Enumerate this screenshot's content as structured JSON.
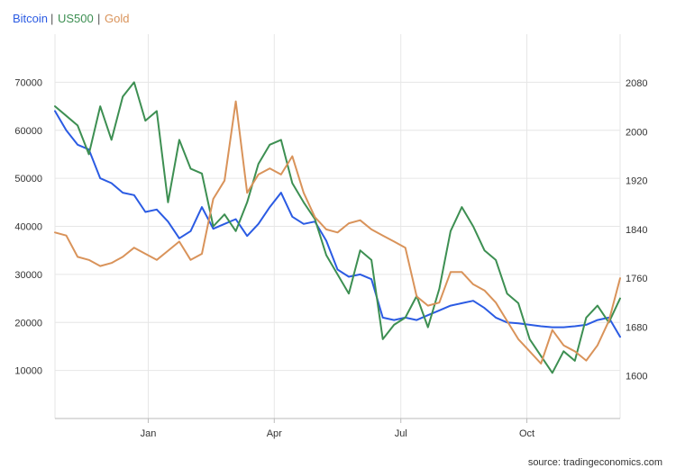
{
  "colors": {
    "bitcoin": "#2b5be3",
    "us500": "#3d8f52",
    "gold": "#d9935a",
    "grid": "#e6e6e6",
    "axis": "#bbbbbb",
    "separator": "#555555"
  },
  "legend": {
    "separator": "|",
    "items": [
      "Bitcoin",
      "US500",
      "Gold"
    ]
  },
  "source": "source: tradingeconomics.com",
  "chart_data": {
    "type": "line",
    "x_ticks": [
      "Jan",
      "Apr",
      "Jul",
      "Oct"
    ],
    "x_tick_positions": [
      0.165,
      0.388,
      0.612,
      0.835
    ],
    "left_axis": {
      "ylim": [
        0,
        80000
      ],
      "ticks": [
        10000,
        20000,
        30000,
        40000,
        50000,
        60000,
        70000
      ]
    },
    "right_axis": {
      "ylim": [
        1530,
        2160
      ],
      "ticks": [
        1600,
        1680,
        1760,
        1840,
        1920,
        2000,
        2080
      ]
    },
    "x": [
      0,
      0.02,
      0.04,
      0.06,
      0.08,
      0.1,
      0.12,
      0.14,
      0.16,
      0.18,
      0.2,
      0.22,
      0.24,
      0.26,
      0.28,
      0.3,
      0.32,
      0.34,
      0.36,
      0.38,
      0.4,
      0.42,
      0.44,
      0.46,
      0.48,
      0.5,
      0.52,
      0.54,
      0.56,
      0.58,
      0.6,
      0.62,
      0.64,
      0.66,
      0.68,
      0.7,
      0.72,
      0.74,
      0.76,
      0.78,
      0.8,
      0.82,
      0.84,
      0.86,
      0.88,
      0.9,
      0.92,
      0.94,
      0.96,
      0.98,
      1.0
    ],
    "series": [
      {
        "name": "Bitcoin",
        "axis": "left",
        "values": [
          64000,
          60000,
          57000,
          56000,
          50000,
          49000,
          47000,
          46500,
          43000,
          43500,
          41000,
          37500,
          39000,
          44000,
          39500,
          40500,
          41500,
          38000,
          40500,
          44000,
          47000,
          42000,
          40500,
          41000,
          37000,
          31000,
          29500,
          30000,
          29000,
          21000,
          20500,
          21000,
          20500,
          21500,
          22500,
          23500,
          24000,
          24500,
          23000,
          21000,
          20000,
          19800,
          19500,
          19200,
          19000,
          19000,
          19200,
          19500,
          20500,
          21000,
          17000
        ]
      },
      {
        "name": "US500",
        "axis": "left",
        "values": [
          65000,
          63000,
          61000,
          55000,
          65000,
          58000,
          67000,
          70000,
          62000,
          64000,
          45000,
          58000,
          52000,
          51000,
          40000,
          42500,
          39000,
          45000,
          53000,
          57000,
          58000,
          49000,
          45000,
          41500,
          34000,
          30000,
          26000,
          35000,
          33000,
          16500,
          19500,
          21000,
          25500,
          19000,
          27000,
          39000,
          44000,
          40000,
          35000,
          33000,
          26000,
          24000,
          16500,
          13000,
          9500,
          14000,
          12000,
          21000,
          23500,
          20000,
          25000
        ]
      },
      {
        "name": "Gold",
        "axis": "right",
        "values": [
          1835,
          1830,
          1795,
          1790,
          1780,
          1785,
          1795,
          1810,
          1800,
          1790,
          1805,
          1820,
          1790,
          1800,
          1890,
          1920,
          2050,
          1900,
          1930,
          1940,
          1930,
          1960,
          1900,
          1860,
          1840,
          1835,
          1850,
          1855,
          1840,
          1830,
          1820,
          1810,
          1730,
          1715,
          1720,
          1770,
          1770,
          1750,
          1740,
          1720,
          1690,
          1660,
          1640,
          1620,
          1675,
          1650,
          1640,
          1625,
          1650,
          1690,
          1760
        ]
      }
    ]
  }
}
